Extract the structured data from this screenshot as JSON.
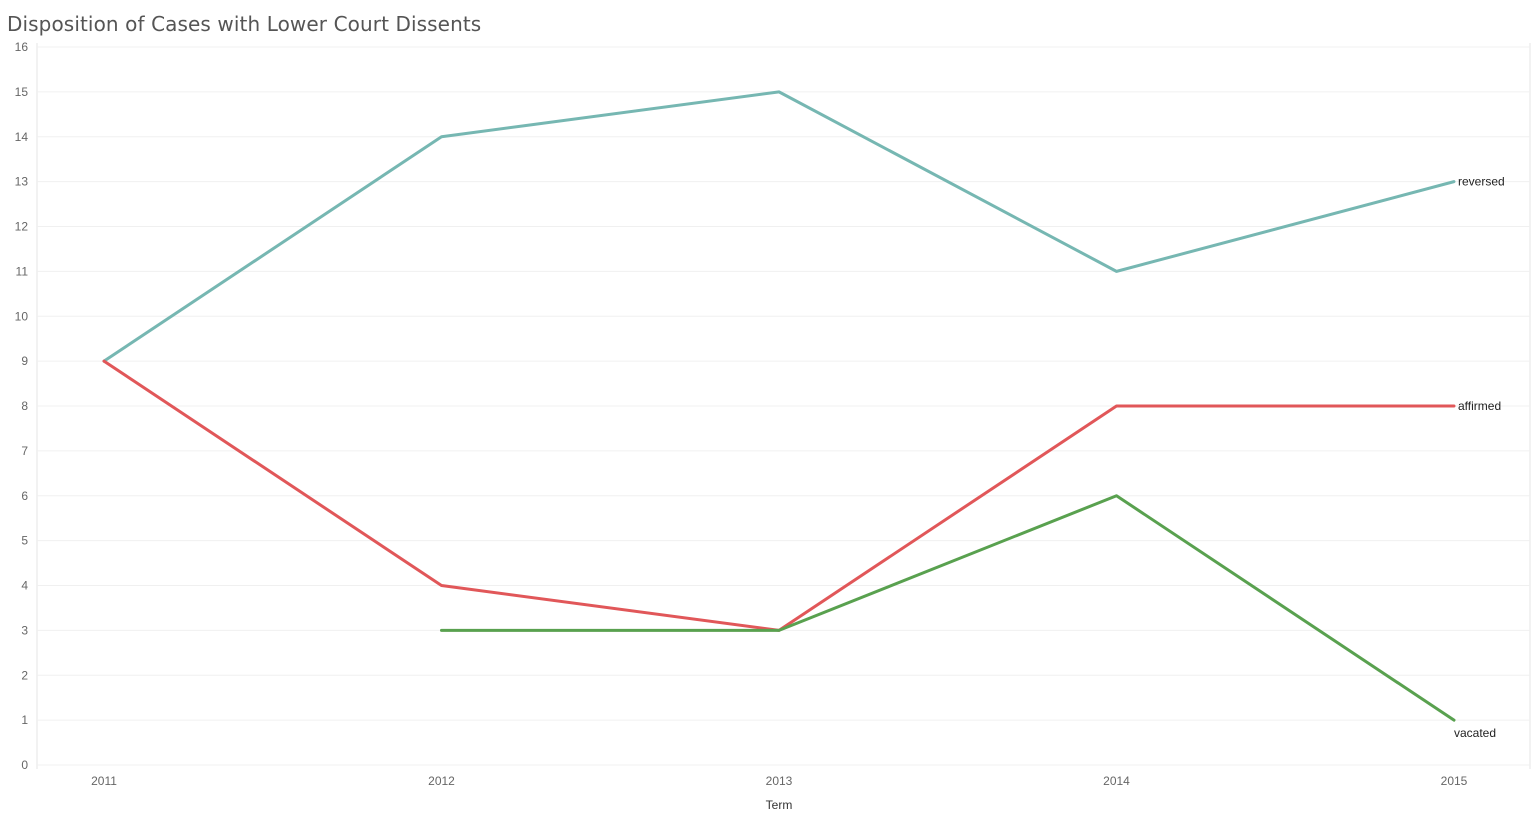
{
  "chart_data": {
    "type": "line",
    "title": "Disposition of Cases with Lower Court Dissents",
    "xlabel": "Term",
    "ylabel": "",
    "x": [
      2011,
      2012,
      2013,
      2014,
      2015
    ],
    "ylim": [
      0,
      16
    ],
    "yticks": [
      0,
      1,
      2,
      3,
      4,
      5,
      6,
      7,
      8,
      9,
      10,
      11,
      12,
      13,
      14,
      15,
      16
    ],
    "grid": true,
    "series": [
      {
        "name": "reversed",
        "color": "#76b7b2",
        "values": [
          9,
          14,
          15,
          11,
          13
        ]
      },
      {
        "name": "affirmed",
        "color": "#e15759",
        "values": [
          9,
          4,
          3,
          8,
          8
        ]
      },
      {
        "name": "vacated",
        "color": "#59a14f",
        "values": [
          null,
          3,
          3,
          6,
          1
        ]
      }
    ]
  }
}
